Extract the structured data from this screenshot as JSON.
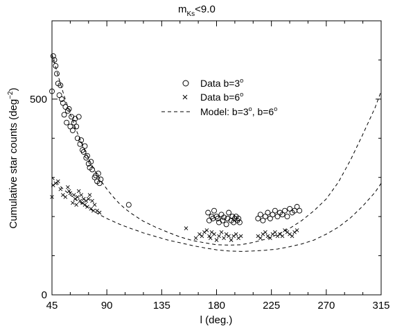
{
  "chart_data": {
    "type": "scatter",
    "title_main": "m",
    "title_sub": "Ks",
    "title_cond": "<9.0",
    "xlabel": "l (deg.)",
    "ylabel_main": "Cumulative star counts (deg",
    "ylabel_sup": "−2",
    "ylabel_close": ")",
    "xlim": [
      45,
      315
    ],
    "ylim": [
      0,
      700
    ],
    "x_ticks": [
      45,
      90,
      135,
      180,
      225,
      270,
      315
    ],
    "y_ticks": [
      0,
      500
    ],
    "y_minor_ticks": [
      100,
      200,
      300,
      400,
      600
    ],
    "x_minor_ticks": [
      60,
      75,
      105,
      120,
      150,
      165,
      195,
      210,
      240,
      255,
      285,
      300
    ],
    "legend": {
      "position": "upper-center",
      "entries": [
        {
          "marker": "circle",
          "text": "Data b=3",
          "sup": "o"
        },
        {
          "marker": "cross",
          "text": "Data b=6",
          "sup": "o"
        },
        {
          "marker": "dash",
          "text": "Model: b=3",
          "sup": "o",
          "text2": ", b=6",
          "sup2": "o"
        }
      ]
    },
    "series": [
      {
        "marker": "circle",
        "x": [
          45,
          46,
          47,
          48,
          49,
          50,
          51,
          52,
          53,
          54,
          55,
          56,
          57,
          58,
          59,
          60,
          61,
          62,
          63,
          64,
          65,
          66,
          67,
          68,
          69,
          70,
          71,
          72,
          73,
          74,
          75,
          76,
          77,
          78,
          80,
          81,
          82,
          83,
          84,
          85,
          108,
          173,
          174,
          176,
          177,
          178,
          180,
          181,
          182,
          184,
          185,
          186,
          188,
          189,
          190,
          192,
          193,
          194,
          195,
          196,
          197,
          198,
          199,
          214,
          216,
          218,
          220,
          222,
          224,
          226,
          228,
          230,
          232,
          234,
          236,
          238,
          240,
          242,
          244,
          246,
          248
        ],
        "y": [
          520,
          610,
          600,
          585,
          565,
          540,
          510,
          535,
          500,
          490,
          460,
          480,
          440,
          470,
          475,
          430,
          455,
          420,
          440,
          450,
          430,
          400,
          455,
          385,
          395,
          370,
          365,
          380,
          350,
          355,
          335,
          325,
          340,
          320,
          300,
          305,
          290,
          310,
          285,
          295,
          230,
          210,
          190,
          200,
          195,
          215,
          200,
          195,
          185,
          205,
          190,
          198,
          180,
          195,
          210,
          190,
          200,
          185,
          195,
          200,
          190,
          195,
          185,
          195,
          205,
          190,
          200,
          210,
          195,
          205,
          215,
          200,
          210,
          205,
          215,
          200,
          220,
          210,
          215,
          225,
          215
        ]
      },
      {
        "marker": "cross",
        "x": [
          45,
          46,
          48,
          50,
          52,
          54,
          56,
          58,
          59,
          60,
          62,
          63,
          64,
          65,
          66,
          67,
          68,
          69,
          70,
          71,
          72,
          73,
          74,
          75,
          76,
          77,
          78,
          79,
          80,
          82,
          84,
          155,
          163,
          166,
          168,
          170,
          172,
          174,
          175,
          176,
          178,
          180,
          182,
          184,
          186,
          188,
          190,
          192,
          194,
          196,
          198,
          200,
          214,
          216,
          218,
          220,
          222,
          224,
          226,
          228,
          230,
          232,
          234,
          236,
          238,
          240,
          242,
          244,
          246
        ],
        "y": [
          250,
          280,
          285,
          290,
          270,
          255,
          250,
          275,
          265,
          260,
          235,
          255,
          245,
          230,
          250,
          265,
          240,
          255,
          235,
          245,
          230,
          240,
          225,
          245,
          255,
          220,
          240,
          215,
          230,
          215,
          210,
          170,
          145,
          155,
          150,
          160,
          165,
          150,
          145,
          160,
          155,
          140,
          150,
          160,
          145,
          155,
          150,
          140,
          150,
          155,
          145,
          150,
          150,
          145,
          155,
          160,
          150,
          145,
          155,
          160,
          150,
          155,
          150,
          165,
          160,
          155,
          150,
          160,
          165
        ]
      },
      {
        "marker": "dash",
        "x": [
          45,
          50,
          55,
          60,
          65,
          70,
          75,
          80,
          85,
          90,
          95,
          100,
          105,
          110,
          115,
          120,
          130,
          140,
          150,
          160,
          170,
          180,
          190,
          200,
          210,
          220,
          230,
          240,
          250,
          260,
          270,
          280,
          290,
          300,
          310,
          315
        ],
        "y": [
          615,
          560,
          508,
          462,
          420,
          382,
          348,
          318,
          292,
          270,
          251,
          234,
          220,
          208,
          198,
          188,
          173,
          160,
          148,
          139,
          133,
          128,
          127,
          128,
          134,
          142,
          154,
          170,
          190,
          215,
          245,
          288,
          345,
          410,
          478,
          520
        ]
      },
      {
        "marker": "dash",
        "x": [
          45,
          50,
          55,
          60,
          65,
          70,
          75,
          80,
          85,
          90,
          95,
          100,
          105,
          110,
          115,
          120,
          130,
          140,
          150,
          160,
          170,
          180,
          190,
          200,
          210,
          220,
          230,
          240,
          250,
          260,
          270,
          280,
          290,
          300,
          310,
          315
        ],
        "y": [
          300,
          283,
          268,
          255,
          243,
          232,
          222,
          212,
          203,
          195,
          188,
          181,
          175,
          169,
          164,
          158,
          149,
          140,
          133,
          126,
          120,
          115,
          112,
          111,
          112,
          114,
          117,
          123,
          130,
          140,
          155,
          173,
          197,
          227,
          262,
          285
        ]
      }
    ]
  }
}
